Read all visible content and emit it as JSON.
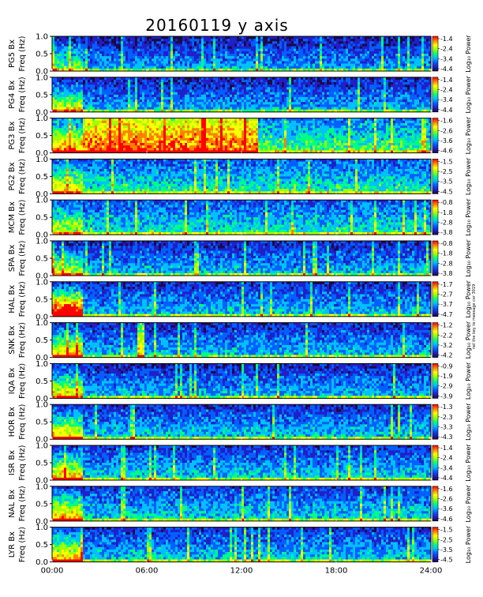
{
  "chart_data": {
    "type": "heatmap",
    "title": "20160119 y axis",
    "xlabel": "",
    "x_ticks": [
      "00:00",
      "06:00",
      "12:00",
      "18:00",
      "24:00"
    ],
    "x_range_hours": [
      0,
      24
    ],
    "y_ticks": [
      "1.0",
      "0.5",
      "0.0"
    ],
    "y_range_hz": [
      0,
      1.0
    ],
    "colorbar_label": "Log₁₀ Power",
    "side_note": "nel the key to message cor 3019",
    "colorscale": [
      "#1a0a4a",
      "#2020c8",
      "#0060ff",
      "#00c0ff",
      "#00ff80",
      "#a0ff00",
      "#ffff00",
      "#ff8000",
      "#ff0000"
    ],
    "panels": [
      {
        "station": "PG5",
        "ylabel": "PG5 Bx",
        "ylabel2": "Freq (Hz)",
        "cb_ticks": [
          "-1.4",
          "-2.4",
          "-3.4",
          "-4.4"
        ],
        "activity": 0.22,
        "early_burst": 0.3,
        "bright_band": null
      },
      {
        "station": "PG4",
        "ylabel": "PG4 Bx",
        "ylabel2": "Freq (Hz)",
        "cb_ticks": [
          "-1.4",
          "-2.4",
          "-3.4",
          "-4.4"
        ],
        "activity": 0.25,
        "early_burst": 0.45,
        "bright_band": null
      },
      {
        "station": "PG3",
        "ylabel": "PG3 Bx",
        "ylabel2": "Freq (Hz)",
        "cb_ticks": [
          "-1.6",
          "-2.6",
          "-3.6",
          "-4.6"
        ],
        "activity": 0.55,
        "early_burst": 0.4,
        "bright_band": [
          2.0,
          13.0
        ]
      },
      {
        "station": "PG2",
        "ylabel": "PG2 Bx",
        "ylabel2": "Freq (Hz)",
        "cb_ticks": [
          "-1.5",
          "-2.5",
          "-3.5",
          "-4.5"
        ],
        "activity": 0.45,
        "early_burst": 0.35,
        "bright_band": null
      },
      {
        "station": "MCM",
        "ylabel": "MCM Bx",
        "ylabel2": "Freq (Hz)",
        "cb_ticks": [
          "-0.8",
          "-1.8",
          "-2.8",
          "-3.8"
        ],
        "activity": 0.42,
        "early_burst": 0.3,
        "bright_band": null
      },
      {
        "station": "SPA",
        "ylabel": "SPA Bx",
        "ylabel2": "Freq (Hz)",
        "cb_ticks": [
          "-0.8",
          "-1.8",
          "-2.8",
          "-3.8"
        ],
        "activity": 0.28,
        "early_burst": 0.4,
        "bright_band": null
      },
      {
        "station": "HAL",
        "ylabel": "HAL Bx",
        "ylabel2": "Freq (Hz)",
        "cb_ticks": [
          "-1.7",
          "-2.7",
          "-3.7",
          "-4.7"
        ],
        "activity": 0.3,
        "early_burst": 0.9,
        "bright_band": null
      },
      {
        "station": "SNK",
        "ylabel": "SNK Bx",
        "ylabel2": "Freq (Hz)",
        "cb_ticks": [
          "-1.2",
          "-2.2",
          "-3.2",
          "-4.2"
        ],
        "activity": 0.3,
        "early_burst": 0.5,
        "bright_band": [
          5.4,
          5.8
        ]
      },
      {
        "station": "IQA",
        "ylabel": "IQA Bx",
        "ylabel2": "Freq (Hz)",
        "cb_ticks": [
          "-0.9",
          "-1.9",
          "-2.9",
          "-3.9"
        ],
        "activity": 0.28,
        "early_burst": 0.5,
        "bright_band": null
      },
      {
        "station": "HOR",
        "ylabel": "HOR Bx",
        "ylabel2": "Freq (Hz)",
        "cb_ticks": [
          "-1.3",
          "-2.3",
          "-3.3",
          "-4.3"
        ],
        "activity": 0.32,
        "early_burst": 0.5,
        "bright_band": null
      },
      {
        "station": "ISR",
        "ylabel": "ISR Bx",
        "ylabel2": "Freq (Hz)",
        "cb_ticks": [
          "-1.4",
          "-2.4",
          "-3.4",
          "-4.4"
        ],
        "activity": 0.34,
        "early_burst": 0.5,
        "bright_band": null
      },
      {
        "station": "NAL",
        "ylabel": "NAL Bx",
        "ylabel2": "Freq (Hz)",
        "cb_ticks": [
          "-1.6",
          "-2.6",
          "-3.6",
          "-4.6"
        ],
        "activity": 0.36,
        "early_burst": 0.5,
        "bright_band": null
      },
      {
        "station": "LYR",
        "ylabel": "LYR Bx",
        "ylabel2": "Freq (Hz)",
        "cb_ticks": [
          "-1.5",
          "-2.5",
          "-3.5",
          "-4.5"
        ],
        "activity": 0.33,
        "early_burst": 0.55,
        "bright_band": null
      }
    ]
  }
}
